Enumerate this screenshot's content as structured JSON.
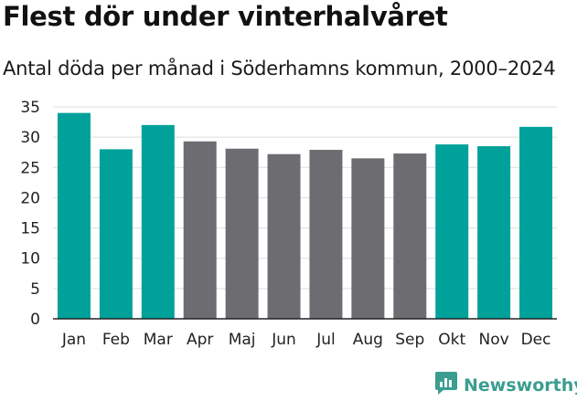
{
  "chart_data": {
    "type": "bar",
    "title": "Flest dör under vinterhalvåret",
    "subtitle": "Antal döda per månad i Söderhamns kommun, 2000–2024",
    "xlabel": "",
    "ylabel": "",
    "categories": [
      "Jan",
      "Feb",
      "Mar",
      "Apr",
      "Maj",
      "Jun",
      "Jul",
      "Aug",
      "Sep",
      "Okt",
      "Nov",
      "Dec"
    ],
    "values": [
      34.0,
      28.0,
      32.0,
      29.3,
      28.1,
      27.2,
      27.9,
      26.5,
      27.3,
      28.8,
      28.5,
      31.7
    ],
    "season": [
      "winter",
      "winter",
      "winter",
      "summer",
      "summer",
      "summer",
      "summer",
      "summer",
      "summer",
      "winter",
      "winter",
      "winter"
    ],
    "colors": {
      "winter": "#00a19a",
      "summer": "#6d6c71",
      "grid": "#dddddd",
      "axis": "#222222"
    },
    "ylim": [
      0,
      35
    ],
    "yticks": [
      0,
      5,
      10,
      15,
      20,
      25,
      30,
      35
    ],
    "grid": true
  },
  "brand": {
    "name": "Newsworthy",
    "logo_icon": "newsworthy-chart-icon",
    "color": "#3b9d90"
  }
}
